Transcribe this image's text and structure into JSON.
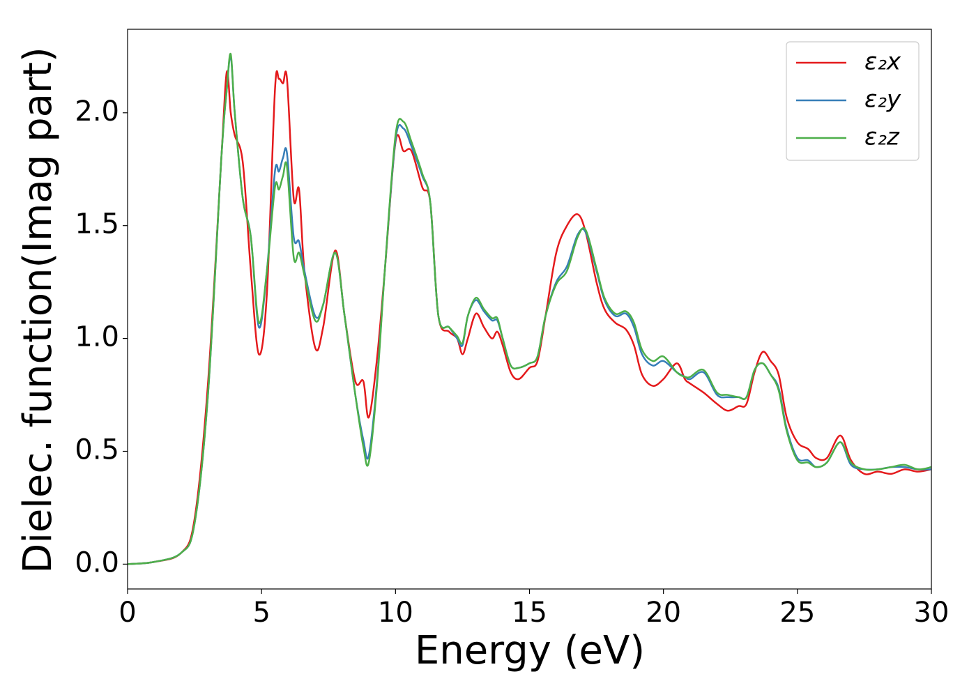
{
  "chart_data": {
    "type": "line",
    "xlabel": "Energy (eV)",
    "ylabel": "Dielec. function(Imag part)",
    "x": [
      0,
      1,
      2,
      2.5,
      3,
      3.5,
      3.7,
      3.85,
      4.0,
      4.3,
      4.6,
      4.9,
      5.2,
      5.5,
      5.65,
      5.8,
      5.95,
      6.2,
      6.4,
      6.6,
      7.0,
      7.3,
      7.75,
      8.1,
      8.5,
      8.8,
      9.0,
      9.3,
      9.6,
      10.0,
      10.3,
      10.6,
      11.0,
      11.3,
      11.6,
      12.0,
      12.3,
      12.5,
      12.7,
      13.0,
      13.3,
      13.6,
      13.8,
      14.0,
      14.3,
      14.6,
      15.0,
      15.3,
      15.6,
      16.0,
      16.4,
      16.8,
      17.1,
      17.5,
      17.8,
      18.2,
      18.6,
      18.9,
      19.2,
      19.6,
      20.0,
      20.5,
      20.8,
      21.0,
      21.5,
      22.0,
      22.4,
      22.8,
      23.1,
      23.4,
      23.7,
      24.0,
      24.3,
      24.6,
      25.0,
      25.4,
      25.7,
      26.1,
      26.6,
      27.0,
      27.5,
      28.0,
      28.5,
      29.0,
      29.5,
      30
    ],
    "series": [
      {
        "name": "ε₂x",
        "color": "#e41a1c",
        "values": [
          0,
          0.01,
          0.05,
          0.2,
          0.8,
          1.8,
          2.18,
          2.0,
          1.9,
          1.78,
          1.3,
          0.93,
          1.2,
          2.1,
          2.15,
          2.13,
          2.15,
          1.62,
          1.66,
          1.3,
          0.96,
          1.05,
          1.39,
          1.1,
          0.81,
          0.81,
          0.65,
          0.9,
          1.3,
          1.87,
          1.83,
          1.83,
          1.67,
          1.6,
          1.1,
          1.03,
          1.0,
          0.93,
          1.0,
          1.11,
          1.05,
          1.0,
          1.03,
          0.97,
          0.85,
          0.82,
          0.87,
          0.9,
          1.1,
          1.38,
          1.5,
          1.55,
          1.47,
          1.25,
          1.13,
          1.07,
          1.04,
          0.97,
          0.84,
          0.79,
          0.82,
          0.89,
          0.82,
          0.8,
          0.76,
          0.71,
          0.68,
          0.7,
          0.71,
          0.85,
          0.94,
          0.9,
          0.84,
          0.65,
          0.54,
          0.51,
          0.47,
          0.47,
          0.57,
          0.46,
          0.4,
          0.41,
          0.4,
          0.42,
          0.41,
          0.42
        ]
      },
      {
        "name": "ε₂y",
        "color": "#377eb8",
        "values": [
          0,
          0.01,
          0.05,
          0.18,
          0.75,
          1.8,
          2.1,
          2.25,
          2.0,
          1.62,
          1.45,
          1.05,
          1.3,
          1.74,
          1.74,
          1.8,
          1.82,
          1.45,
          1.43,
          1.3,
          1.1,
          1.15,
          1.38,
          1.1,
          0.75,
          0.55,
          0.48,
          0.8,
          1.3,
          1.88,
          1.93,
          1.85,
          1.72,
          1.6,
          1.1,
          1.05,
          1.0,
          0.97,
          1.1,
          1.17,
          1.12,
          1.08,
          1.08,
          1.0,
          0.88,
          0.87,
          0.89,
          0.92,
          1.1,
          1.25,
          1.32,
          1.46,
          1.47,
          1.3,
          1.17,
          1.1,
          1.11,
          1.05,
          0.93,
          0.88,
          0.9,
          0.85,
          0.83,
          0.82,
          0.85,
          0.75,
          0.74,
          0.74,
          0.74,
          0.86,
          0.89,
          0.84,
          0.78,
          0.6,
          0.47,
          0.46,
          0.43,
          0.45,
          0.54,
          0.44,
          0.42,
          0.42,
          0.43,
          0.43,
          0.42,
          0.42
        ]
      },
      {
        "name": "ε₂z",
        "color": "#4daf4a",
        "values": [
          0,
          0.01,
          0.05,
          0.18,
          0.75,
          1.8,
          2.1,
          2.26,
          2.0,
          1.62,
          1.45,
          1.07,
          1.3,
          1.67,
          1.66,
          1.72,
          1.76,
          1.36,
          1.38,
          1.28,
          1.08,
          1.15,
          1.38,
          1.1,
          0.75,
          0.52,
          0.45,
          0.78,
          1.3,
          1.9,
          1.96,
          1.87,
          1.73,
          1.6,
          1.1,
          1.05,
          1.01,
          0.98,
          1.1,
          1.18,
          1.13,
          1.09,
          1.09,
          1.0,
          0.88,
          0.87,
          0.89,
          0.92,
          1.1,
          1.24,
          1.3,
          1.45,
          1.48,
          1.31,
          1.18,
          1.11,
          1.12,
          1.07,
          0.95,
          0.9,
          0.92,
          0.85,
          0.83,
          0.83,
          0.86,
          0.76,
          0.75,
          0.74,
          0.74,
          0.86,
          0.89,
          0.84,
          0.77,
          0.59,
          0.46,
          0.45,
          0.43,
          0.45,
          0.54,
          0.45,
          0.42,
          0.42,
          0.43,
          0.44,
          0.42,
          0.43
        ]
      }
    ],
    "xlim": [
      0,
      30
    ],
    "xticks": [
      0,
      5,
      10,
      15,
      20,
      25,
      30
    ],
    "ylim": [
      -0.11,
      2.37
    ],
    "yticks": [
      {
        "value": 0,
        "label": "0.0"
      },
      0.5,
      {
        "value": 1,
        "label": "1.0"
      },
      1.5,
      {
        "value": 2,
        "label": "2.0"
      }
    ],
    "legend": "upper right"
  }
}
